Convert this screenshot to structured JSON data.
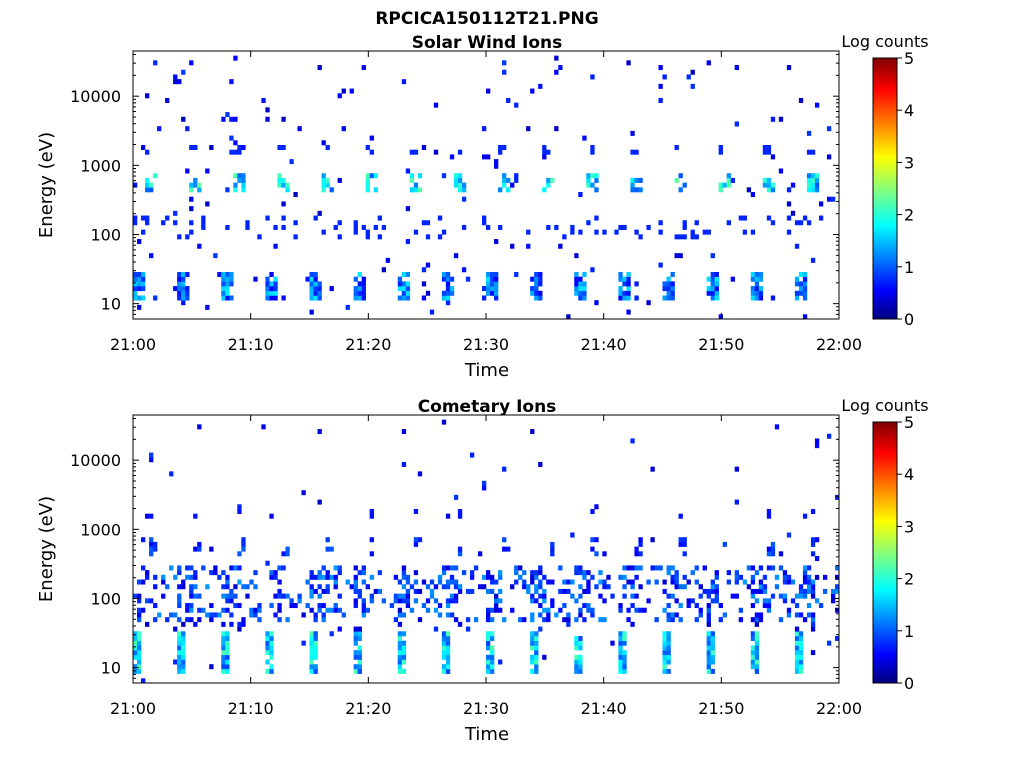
{
  "figure": {
    "title": "RPCICA150112T21.PNG"
  },
  "chart_data": [
    {
      "type": "heatmap",
      "title": "Solar Wind Ions",
      "xlabel": "Time",
      "ylabel": "Energy (eV)",
      "x_range": [
        "21:00",
        "22:00"
      ],
      "x_ticks": [
        "21:00",
        "21:10",
        "21:20",
        "21:30",
        "21:40",
        "21:50",
        "22:00"
      ],
      "y_scale": "log",
      "y_range": [
        6,
        45000
      ],
      "y_ticks": [
        "10",
        "100",
        "1000",
        "10000"
      ],
      "colorbar": {
        "label": "Log counts",
        "range": [
          0,
          5
        ],
        "ticks": [
          "0",
          "1",
          "2",
          "3",
          "4",
          "5"
        ]
      },
      "band_log_counts": {
        "peak_1000eV": 0.8,
        "peak_500eV": 2.0,
        "low_100eV": 0.8,
        "low_15eV": 1.2
      }
    },
    {
      "type": "heatmap",
      "title": "Cometary Ions",
      "xlabel": "Time",
      "ylabel": "Energy (eV)",
      "x_range": [
        "21:00",
        "22:00"
      ],
      "x_ticks": [
        "21:00",
        "21:10",
        "21:20",
        "21:30",
        "21:40",
        "21:50",
        "22:00"
      ],
      "y_scale": "log",
      "y_range": [
        6,
        45000
      ],
      "y_ticks": [
        "10",
        "100",
        "1000",
        "10000"
      ],
      "colorbar": {
        "label": "Log counts",
        "range": [
          0,
          5
        ],
        "ticks": [
          "0",
          "1",
          "2",
          "3",
          "4",
          "5"
        ]
      },
      "band_log_counts": {
        "peak_1500eV": 0.7,
        "peak_500eV": 1.0,
        "mid_100eV": 1.0,
        "low_15eV": 1.9
      }
    }
  ]
}
